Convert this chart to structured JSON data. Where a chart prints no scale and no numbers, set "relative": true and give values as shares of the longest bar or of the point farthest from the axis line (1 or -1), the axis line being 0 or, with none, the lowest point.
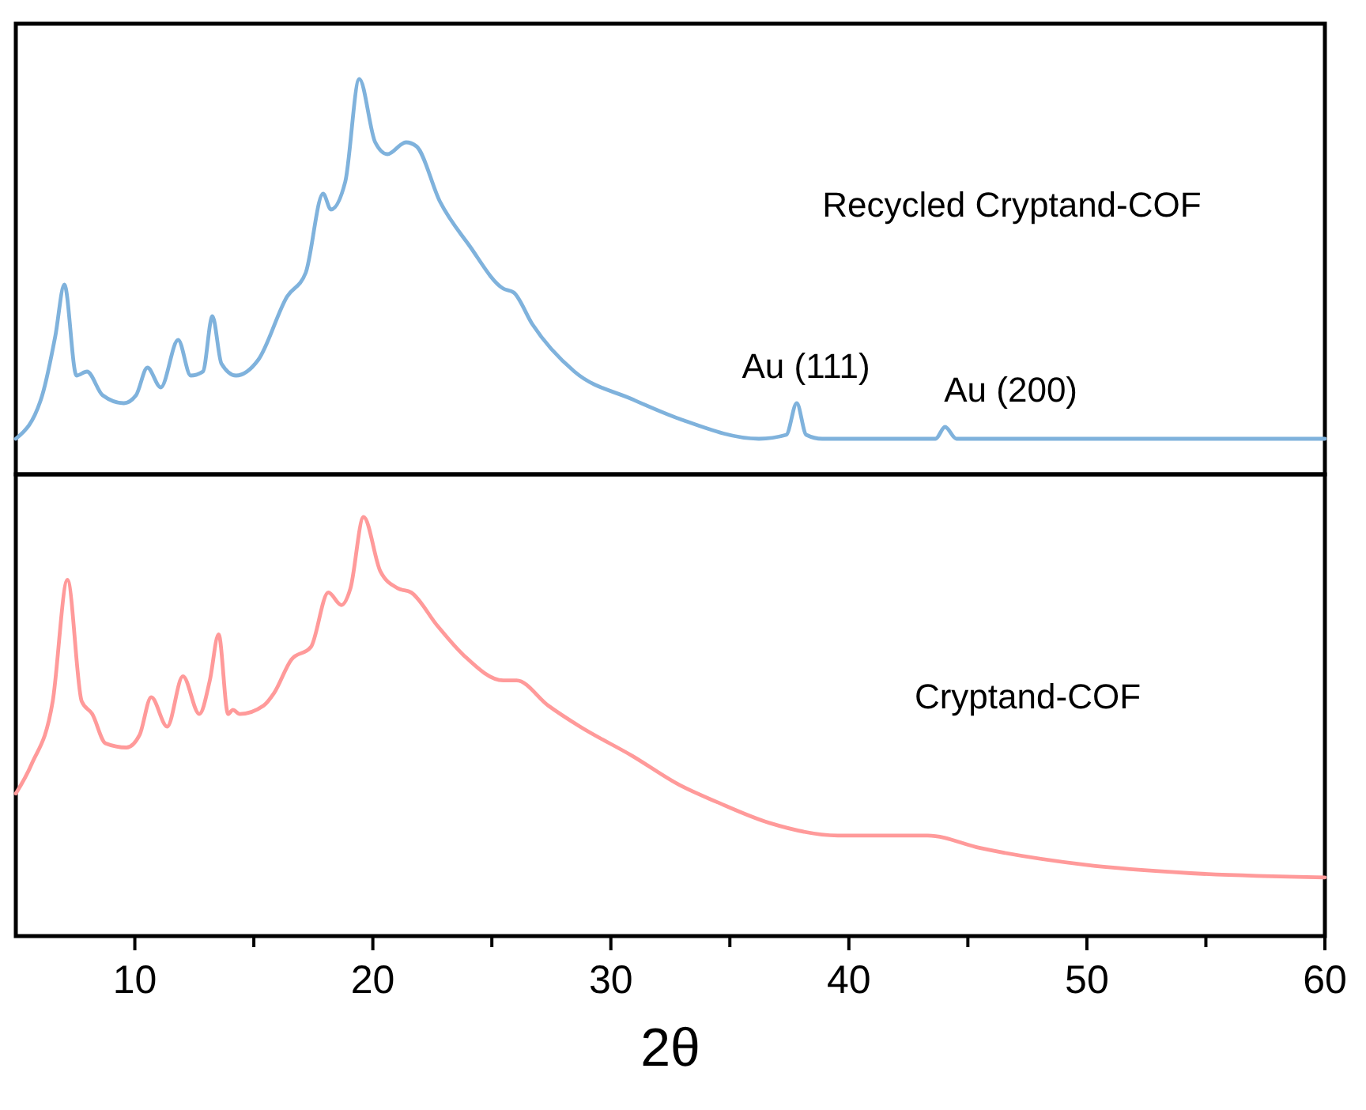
{
  "chart_data": [
    {
      "type": "line",
      "relative": true,
      "xlim": [
        5,
        60
      ],
      "tick_labels": false,
      "annotations": [
        {
          "text": "Au (111)",
          "x": 37.8,
          "y": 0.18
        },
        {
          "text": "Au (200)",
          "x": 44.0,
          "y": 0.12
        }
      ],
      "series": [
        {
          "name": "Recycled Cryptand-COF",
          "color": "#7fb2dc",
          "x": [
            5,
            6.11,
            6.66,
            7.04,
            7.55,
            7.99,
            8.65,
            9.54,
            10.05,
            10.53,
            11.09,
            11.82,
            12.35,
            12.86,
            13.26,
            13.64,
            14.25,
            15.19,
            16.4,
            17.18,
            17.91,
            18.24,
            18.84,
            19.43,
            20.1,
            20.61,
            21.39,
            21.83,
            22.82,
            24.04,
            25.48,
            25.92,
            26.7,
            28.47,
            30.9,
            32.9,
            36.22,
            37.37,
            37.81,
            38.21,
            38.88,
            43.64,
            44.04,
            44.52,
            60
          ],
          "values": [
            0.09,
            0.2,
            0.35,
            0.48,
            0.25,
            0.26,
            0.2,
            0.18,
            0.2,
            0.27,
            0.22,
            0.34,
            0.25,
            0.26,
            0.4,
            0.28,
            0.25,
            0.29,
            0.45,
            0.51,
            0.71,
            0.67,
            0.74,
            1,
            0.84,
            0.81,
            0.84,
            0.83,
            0.69,
            0.58,
            0.47,
            0.46,
            0.38,
            0.26,
            0.19,
            0.14,
            0.09,
            0.1,
            0.18,
            0.1,
            0.09,
            0.09,
            0.12,
            0.09,
            0.09
          ]
        }
      ]
    },
    {
      "type": "line",
      "relative": true,
      "xlim": [
        5,
        60
      ],
      "xticks": [
        10,
        {
          "value": 15,
          "label": null
        },
        20,
        {
          "value": 25,
          "label": null
        },
        30,
        {
          "value": 35,
          "label": null
        },
        40,
        {
          "value": 45,
          "label": null
        },
        50,
        {
          "value": 55,
          "label": null
        },
        60
      ],
      "xlabel": "2θ",
      "tick_labels": "x",
      "series": [
        {
          "name": "Cryptand-COF",
          "color": "#ff9a9a",
          "x": [
            5,
            5.66,
            6.55,
            7.17,
            7.77,
            8.21,
            8.77,
            9.65,
            10.2,
            10.69,
            11.36,
            12.02,
            12.71,
            13.15,
            13.52,
            13.92,
            14.12,
            14.41,
            15.41,
            15.85,
            16.58,
            17.4,
            18.13,
            18.68,
            19.06,
            19.61,
            20.32,
            21.05,
            21.61,
            22.72,
            23.82,
            25.48,
            26.04,
            27.37,
            28.7,
            30.9,
            32.9,
            34.45,
            36.66,
            39.54,
            43.31,
            45.52,
            49.95,
            54.37,
            60
          ],
          "values": [
            0.34,
            0.41,
            0.56,
            0.85,
            0.56,
            0.53,
            0.46,
            0.45,
            0.48,
            0.57,
            0.5,
            0.62,
            0.53,
            0.61,
            0.72,
            0.53,
            0.54,
            0.53,
            0.55,
            0.58,
            0.66,
            0.69,
            0.82,
            0.79,
            0.83,
            1,
            0.87,
            0.83,
            0.82,
            0.74,
            0.67,
            0.61,
            0.61,
            0.55,
            0.5,
            0.43,
            0.36,
            0.32,
            0.27,
            0.24,
            0.24,
            0.21,
            0.17,
            0.15,
            0.14
          ]
        }
      ]
    }
  ]
}
